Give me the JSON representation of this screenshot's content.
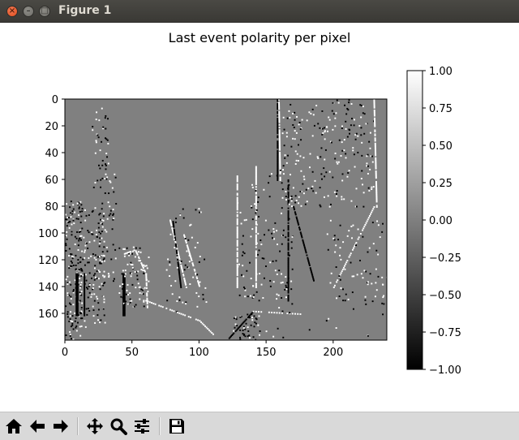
{
  "window": {
    "title": "Figure 1",
    "close_glyph": "×",
    "minimize_glyph": "–",
    "maximize_glyph": "□"
  },
  "chart_data": {
    "type": "heatmap",
    "title": "Last event polarity per pixel",
    "colormap": "gray",
    "x_ticks": [
      "0",
      "50",
      "100",
      "150",
      "200"
    ],
    "y_ticks": [
      "0",
      "20",
      "40",
      "60",
      "80",
      "100",
      "120",
      "140",
      "160"
    ],
    "xlim": [
      0,
      240
    ],
    "ylim": [
      180,
      0
    ],
    "colorbar": {
      "vmin": -1.0,
      "vmax": 1.0,
      "ticks": [
        "1.00",
        "0.75",
        "0.50",
        "0.25",
        "0.00",
        "−0.25",
        "−0.50",
        "−0.75",
        "−1.00"
      ]
    },
    "background_value": 0
  },
  "toolbar": {
    "buttons": [
      {
        "name": "home-icon"
      },
      {
        "name": "back-arrow-icon"
      },
      {
        "name": "forward-arrow-icon"
      },
      {
        "name": "pan-icon"
      },
      {
        "name": "zoom-icon"
      },
      {
        "name": "configure-subplots-icon"
      },
      {
        "name": "save-icon"
      }
    ]
  }
}
